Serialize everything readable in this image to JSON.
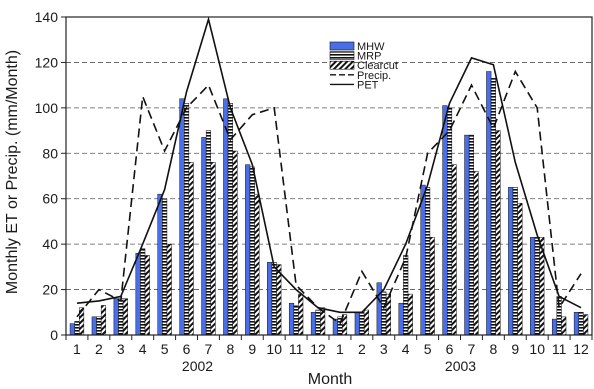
{
  "chart_data": {
    "type": "bar",
    "ylabel": "Monthly ET or Precip. (mm/Month)",
    "xlabel": "Month",
    "ylim": [
      0,
      140
    ],
    "yticks": [
      0,
      20,
      40,
      60,
      80,
      100,
      120,
      140
    ],
    "grid": "horizontal dashed at 20, 40, 60, 80, 100, 120",
    "legend_position": "top-right",
    "categories": [
      "1",
      "2",
      "3",
      "4",
      "5",
      "6",
      "7",
      "8",
      "9",
      "10",
      "11",
      "12",
      "1",
      "2",
      "3",
      "4",
      "5",
      "6",
      "7",
      "8",
      "9",
      "10",
      "11",
      "12"
    ],
    "year_labels": [
      {
        "label": "2002",
        "months": "1-12"
      },
      {
        "label": "2003",
        "months": "13-24"
      }
    ],
    "series": [
      {
        "name": "MHW",
        "kind": "bar",
        "color": "#4a6ee8",
        "values": [
          5,
          8,
          16,
          36,
          62,
          104,
          87,
          104,
          75,
          32,
          14,
          10,
          7,
          10,
          23,
          14,
          66,
          101,
          88,
          116,
          65,
          43,
          7,
          10
        ]
      },
      {
        "name": "MRP",
        "kind": "bar",
        "pattern": "horizontal stripes",
        "values": [
          6,
          8,
          16,
          38,
          60,
          102,
          90,
          102,
          74,
          32,
          13,
          11,
          8,
          10,
          19,
          35,
          65,
          100,
          88,
          113,
          65,
          43,
          17,
          10
        ]
      },
      {
        "name": "Clearcut",
        "kind": "bar",
        "pattern": "diagonal hatch",
        "values": [
          12,
          13,
          16,
          35,
          40,
          76,
          76,
          81,
          62,
          31,
          18,
          12,
          9,
          11,
          18,
          18,
          43,
          75,
          72,
          90,
          58,
          43,
          8,
          9
        ]
      },
      {
        "name": "Precip.",
        "kind": "line",
        "style": "dashed",
        "values": [
          8,
          20,
          15,
          105,
          81,
          100,
          110,
          86,
          97,
          100,
          22,
          12,
          5,
          28,
          12,
          34,
          80,
          90,
          110,
          91,
          116,
          100,
          12,
          27
        ]
      },
      {
        "name": "PET",
        "kind": "line",
        "style": "solid",
        "values": [
          14,
          15,
          17,
          40,
          64,
          107,
          139,
          100,
          75,
          30,
          20,
          12,
          10,
          10,
          20,
          40,
          66,
          102,
          122,
          119,
          76,
          44,
          17,
          12
        ]
      }
    ]
  }
}
